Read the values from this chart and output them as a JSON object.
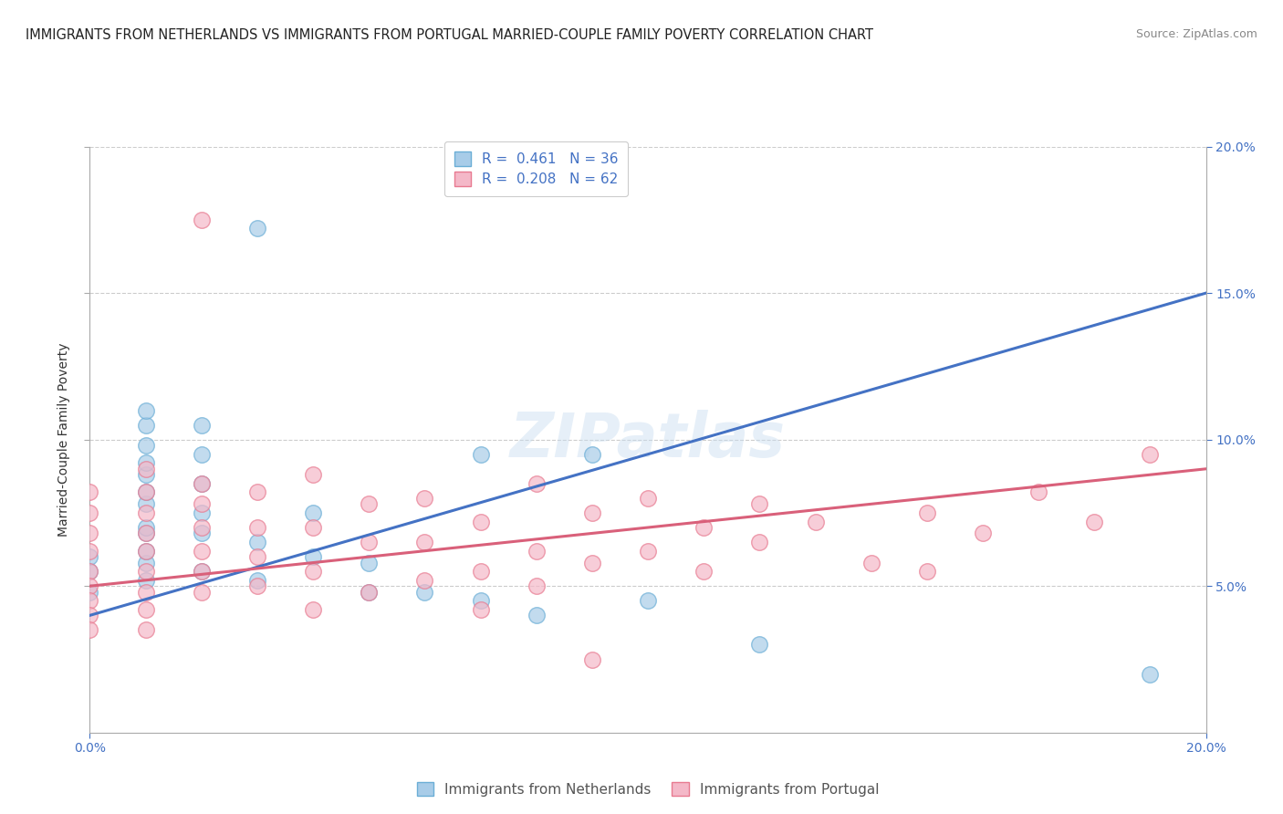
{
  "title": "IMMIGRANTS FROM NETHERLANDS VS IMMIGRANTS FROM PORTUGAL MARRIED-COUPLE FAMILY POVERTY CORRELATION CHART",
  "source": "Source: ZipAtlas.com",
  "ylabel": "Married-Couple Family Poverty",
  "legend_netherlands": "Immigrants from Netherlands",
  "legend_portugal": "Immigrants from Portugal",
  "netherlands_r": "0.461",
  "netherlands_n": "36",
  "portugal_r": "0.208",
  "portugal_n": "62",
  "netherlands_color": "#a8cce8",
  "portugal_color": "#f4b8c8",
  "netherlands_edge_color": "#6baed6",
  "portugal_edge_color": "#e87a90",
  "netherlands_line_color": "#4472c4",
  "portugal_line_color": "#d9607a",
  "watermark": "ZIPatlas",
  "xlim": [
    0.0,
    0.2
  ],
  "ylim": [
    0.0,
    0.2
  ],
  "nl_line_x0": 0.0,
  "nl_line_y0": 0.04,
  "nl_line_x1": 0.2,
  "nl_line_y1": 0.15,
  "pt_line_x0": 0.0,
  "pt_line_y0": 0.05,
  "pt_line_x1": 0.2,
  "pt_line_y1": 0.09,
  "netherlands_points": [
    [
      0.0,
      0.055
    ],
    [
      0.0,
      0.048
    ],
    [
      0.0,
      0.06
    ],
    [
      0.01,
      0.052
    ],
    [
      0.01,
      0.058
    ],
    [
      0.01,
      0.062
    ],
    [
      0.01,
      0.068
    ],
    [
      0.01,
      0.07
    ],
    [
      0.01,
      0.078
    ],
    [
      0.01,
      0.082
    ],
    [
      0.01,
      0.088
    ],
    [
      0.01,
      0.092
    ],
    [
      0.01,
      0.098
    ],
    [
      0.01,
      0.105
    ],
    [
      0.01,
      0.11
    ],
    [
      0.02,
      0.055
    ],
    [
      0.02,
      0.068
    ],
    [
      0.02,
      0.075
    ],
    [
      0.02,
      0.085
    ],
    [
      0.02,
      0.095
    ],
    [
      0.02,
      0.105
    ],
    [
      0.03,
      0.065
    ],
    [
      0.03,
      0.172
    ],
    [
      0.03,
      0.052
    ],
    [
      0.04,
      0.06
    ],
    [
      0.04,
      0.075
    ],
    [
      0.05,
      0.048
    ],
    [
      0.05,
      0.058
    ],
    [
      0.06,
      0.048
    ],
    [
      0.07,
      0.095
    ],
    [
      0.07,
      0.045
    ],
    [
      0.08,
      0.04
    ],
    [
      0.09,
      0.095
    ],
    [
      0.1,
      0.045
    ],
    [
      0.12,
      0.03
    ],
    [
      0.19,
      0.02
    ]
  ],
  "portugal_points": [
    [
      0.0,
      0.082
    ],
    [
      0.0,
      0.075
    ],
    [
      0.0,
      0.068
    ],
    [
      0.0,
      0.062
    ],
    [
      0.0,
      0.055
    ],
    [
      0.0,
      0.05
    ],
    [
      0.0,
      0.045
    ],
    [
      0.0,
      0.04
    ],
    [
      0.0,
      0.035
    ],
    [
      0.01,
      0.09
    ],
    [
      0.01,
      0.082
    ],
    [
      0.01,
      0.075
    ],
    [
      0.01,
      0.068
    ],
    [
      0.01,
      0.062
    ],
    [
      0.01,
      0.055
    ],
    [
      0.01,
      0.048
    ],
    [
      0.01,
      0.042
    ],
    [
      0.01,
      0.035
    ],
    [
      0.02,
      0.085
    ],
    [
      0.02,
      0.078
    ],
    [
      0.02,
      0.07
    ],
    [
      0.02,
      0.062
    ],
    [
      0.02,
      0.055
    ],
    [
      0.02,
      0.048
    ],
    [
      0.02,
      0.175
    ],
    [
      0.03,
      0.082
    ],
    [
      0.03,
      0.07
    ],
    [
      0.03,
      0.06
    ],
    [
      0.03,
      0.05
    ],
    [
      0.04,
      0.088
    ],
    [
      0.04,
      0.07
    ],
    [
      0.04,
      0.055
    ],
    [
      0.04,
      0.042
    ],
    [
      0.05,
      0.078
    ],
    [
      0.05,
      0.065
    ],
    [
      0.05,
      0.048
    ],
    [
      0.06,
      0.08
    ],
    [
      0.06,
      0.065
    ],
    [
      0.06,
      0.052
    ],
    [
      0.07,
      0.072
    ],
    [
      0.07,
      0.055
    ],
    [
      0.07,
      0.042
    ],
    [
      0.08,
      0.085
    ],
    [
      0.08,
      0.062
    ],
    [
      0.08,
      0.05
    ],
    [
      0.09,
      0.075
    ],
    [
      0.09,
      0.058
    ],
    [
      0.09,
      0.025
    ],
    [
      0.1,
      0.08
    ],
    [
      0.1,
      0.062
    ],
    [
      0.11,
      0.07
    ],
    [
      0.11,
      0.055
    ],
    [
      0.12,
      0.078
    ],
    [
      0.12,
      0.065
    ],
    [
      0.13,
      0.072
    ],
    [
      0.14,
      0.058
    ],
    [
      0.15,
      0.075
    ],
    [
      0.15,
      0.055
    ],
    [
      0.16,
      0.068
    ],
    [
      0.17,
      0.082
    ],
    [
      0.18,
      0.072
    ],
    [
      0.19,
      0.095
    ]
  ]
}
